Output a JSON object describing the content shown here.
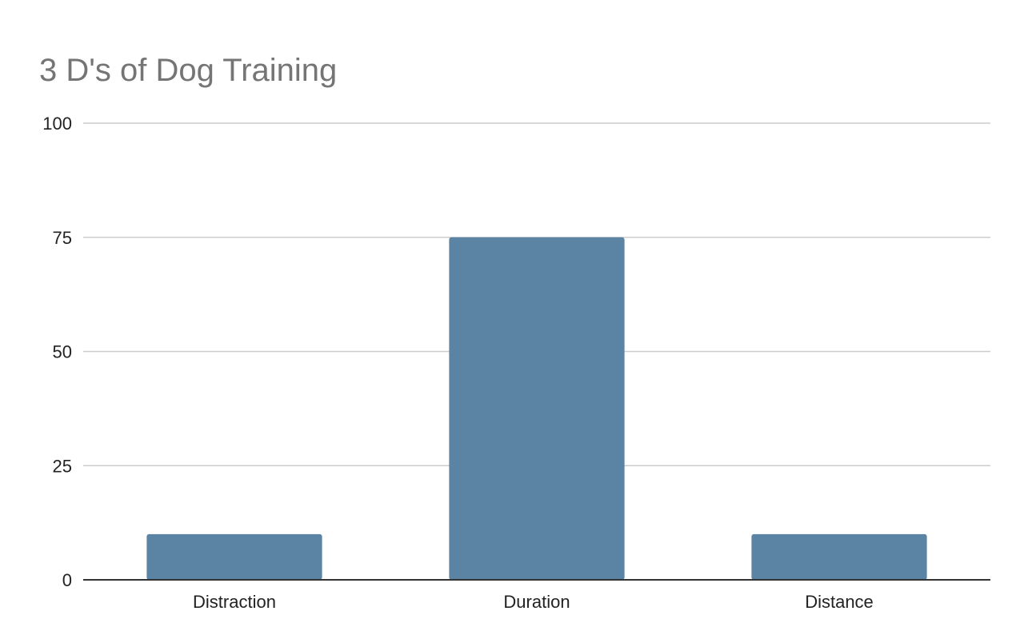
{
  "chart_data": {
    "type": "bar",
    "title": "3 D's of Dog Training",
    "categories": [
      "Distraction",
      "Duration",
      "Distance"
    ],
    "values": [
      10,
      75,
      10
    ],
    "xlabel": "",
    "ylabel": "",
    "ylim": [
      0,
      100
    ],
    "yticks": [
      0,
      25,
      50,
      75,
      100
    ],
    "grid": true,
    "bar_color": "#5b84a4",
    "title_color": "#757575",
    "grid_color": "#cccccc"
  }
}
